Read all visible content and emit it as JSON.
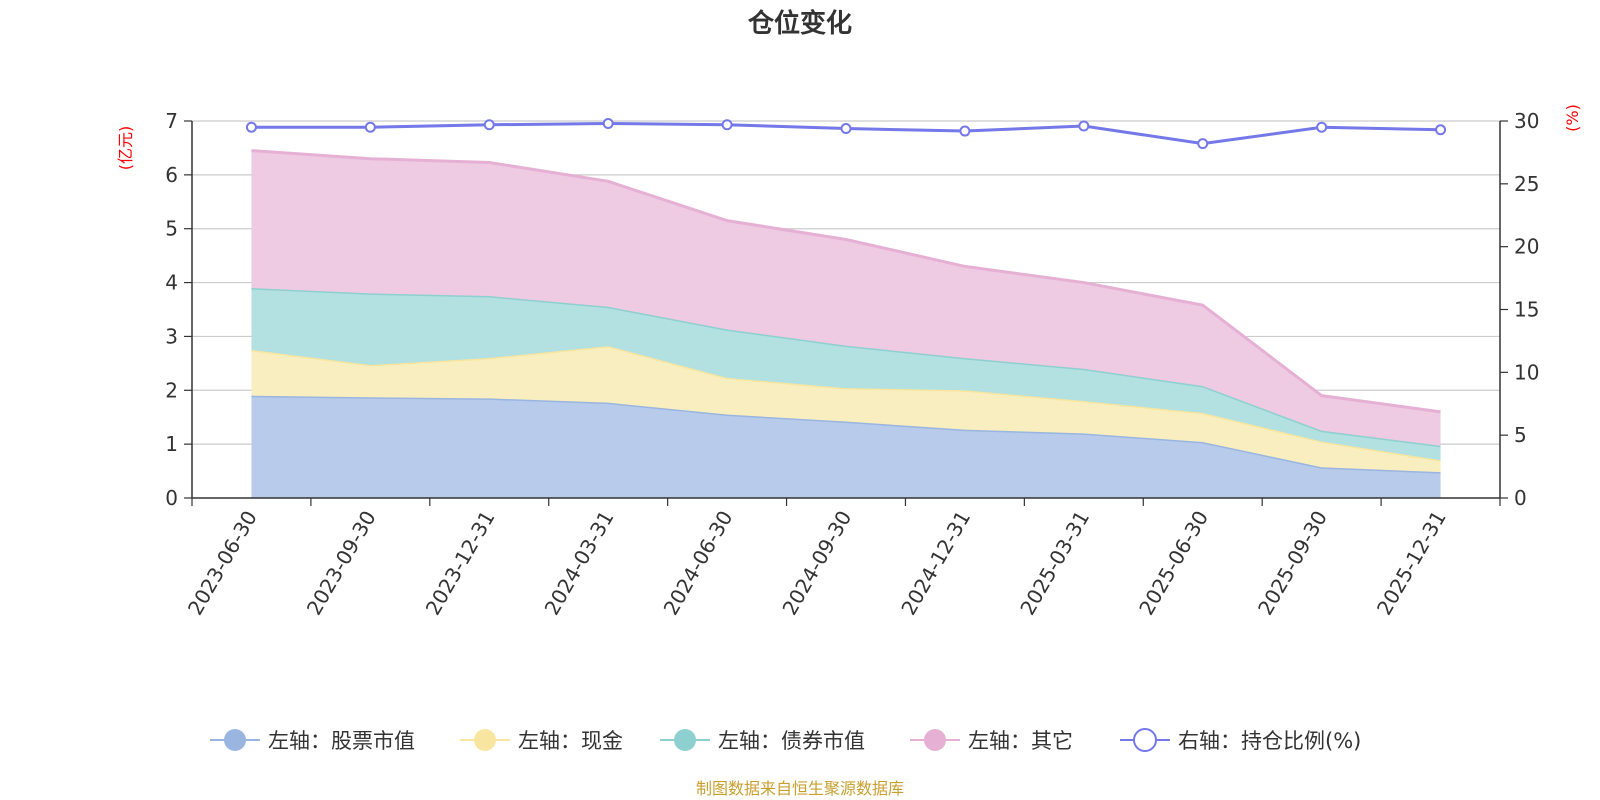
{
  "chart_data": {
    "type": "area",
    "title": "仓位变化",
    "categories": [
      "2023-06-30",
      "2023-09-30",
      "2023-12-31",
      "2024-03-31",
      "2024-06-30",
      "2024-09-30",
      "2024-12-31",
      "2025-03-31",
      "2025-06-30",
      "2025-09-30",
      "2025-12-31"
    ],
    "left_axis": {
      "unit_label": "(亿元)",
      "ylim": [
        0,
        7
      ],
      "ticks": [
        "0",
        "1",
        "2",
        "3",
        "4",
        "5",
        "6",
        "7"
      ]
    },
    "right_axis": {
      "unit_label": "(%)",
      "ylim": [
        0,
        30
      ],
      "ticks": [
        "0",
        "5",
        "10",
        "15",
        "20",
        "25",
        "30"
      ]
    },
    "stacked": true,
    "series": [
      {
        "name": "左轴：股票市值",
        "axis": "left",
        "color": "#9ab5e0",
        "fill": "#b8cbea",
        "values": [
          1.9,
          1.87,
          1.85,
          1.77,
          1.55,
          1.42,
          1.27,
          1.2,
          1.04,
          0.57,
          0.48
        ]
      },
      {
        "name": "左轴：现金",
        "axis": "left",
        "color": "#f8e6a0",
        "fill": "#f8eec0",
        "values": [
          0.85,
          0.6,
          0.75,
          1.05,
          0.68,
          0.62,
          0.73,
          0.6,
          0.54,
          0.48,
          0.22
        ]
      },
      {
        "name": "左轴：债券市值",
        "axis": "left",
        "color": "#8ecfd0",
        "fill": "#b3e0e0",
        "values": [
          1.15,
          1.33,
          1.15,
          0.73,
          0.9,
          0.79,
          0.6,
          0.6,
          0.5,
          0.2,
          0.27
        ]
      },
      {
        "name": "左轴：其它",
        "axis": "left",
        "color": "#e6b0d5",
        "fill": "#eecbe2",
        "values": [
          2.55,
          2.5,
          2.48,
          2.33,
          2.02,
          1.97,
          1.7,
          1.6,
          1.5,
          0.65,
          0.63
        ]
      },
      {
        "name": "右轴：持仓比例(%)",
        "axis": "right",
        "type": "line",
        "color": "#7478e8",
        "values": [
          29.5,
          29.5,
          29.7,
          29.8,
          29.7,
          29.4,
          29.2,
          29.6,
          28.2,
          29.5,
          29.3
        ]
      }
    ],
    "legend_position": "bottom",
    "grid": true
  },
  "source_note": "制图数据来自恒生聚源数据库"
}
